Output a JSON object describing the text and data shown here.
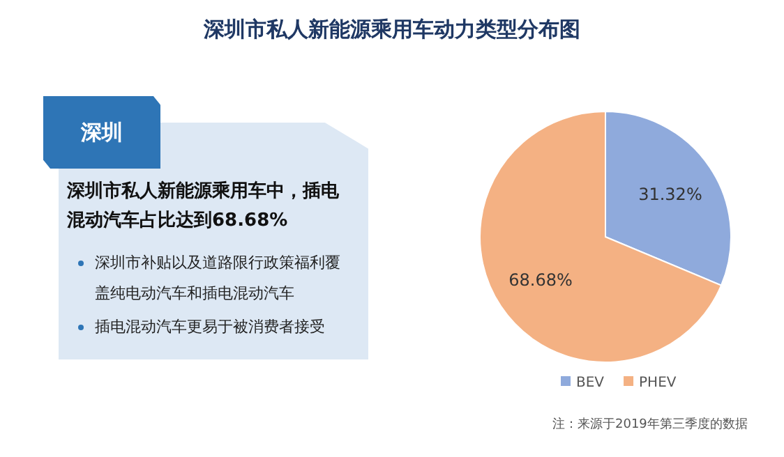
{
  "chart_data": {
    "type": "pie",
    "title": "深圳市私人新能源乘用车动力类型分布图",
    "categories": [
      "BEV",
      "PHEV"
    ],
    "values": [
      31.32,
      68.68
    ],
    "colors": [
      "#8faadc",
      "#f4b183"
    ],
    "value_labels": [
      "31.32%",
      "68.68%"
    ],
    "legend": "bottom",
    "annotations": [
      "深圳",
      "深圳市私人新能源乘用车中，插电混动汽车占比达到68.68%",
      "深圳市补贴以及道路限行政策福利覆盖纯电动汽车和插电混动汽车",
      "插电混动汽车更易于被消费者接受",
      "注：来源于2019年第三季度的数据"
    ]
  }
}
